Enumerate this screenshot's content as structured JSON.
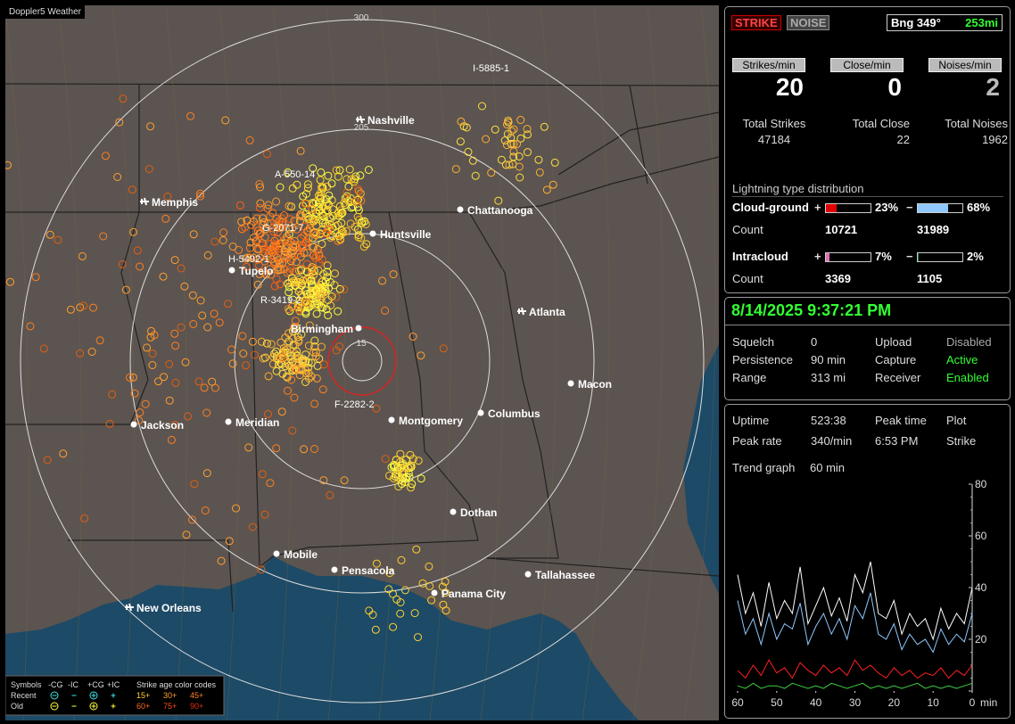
{
  "header": {
    "title": "Doppler5 Weather"
  },
  "map": {
    "range_labels": [
      "300",
      "205",
      "15"
    ],
    "storms": [
      "I-5885-1",
      "A-550-14",
      "G-2071-7",
      "H-5492-1",
      "R-3419-2",
      "F-2282-2"
    ],
    "cities": [
      {
        "name": "Nashville",
        "icon": "plane"
      },
      {
        "name": "Memphis",
        "icon": "plane"
      },
      {
        "name": "Chattanooga",
        "icon": "dot"
      },
      {
        "name": "Huntsville",
        "icon": "dot"
      },
      {
        "name": "Tupelo",
        "icon": "dot"
      },
      {
        "name": "Atlanta",
        "icon": "plane"
      },
      {
        "name": "Birmingham",
        "icon": "dot"
      },
      {
        "name": "Macon",
        "icon": "dot"
      },
      {
        "name": "Jackson",
        "icon": "dot"
      },
      {
        "name": "Meridian",
        "icon": "dot"
      },
      {
        "name": "Montgomery",
        "icon": "dot"
      },
      {
        "name": "Columbus",
        "icon": "dot"
      },
      {
        "name": "Dothan",
        "icon": "dot"
      },
      {
        "name": "Mobile",
        "icon": "dot"
      },
      {
        "name": "Pensacola",
        "icon": "dot"
      },
      {
        "name": "Tallahassee",
        "icon": "dot"
      },
      {
        "name": "Panama City",
        "icon": "dot"
      },
      {
        "name": "New Orleans",
        "icon": "plane"
      }
    ]
  },
  "legend": {
    "symbols_label": "Symbols",
    "symbol_headers": [
      "-CG",
      "-IC",
      "+CG",
      "+IC"
    ],
    "age_label": "Strike age color codes",
    "rows": [
      {
        "name": "Recent",
        "ages": [
          "15+",
          "30+",
          "45+"
        ]
      },
      {
        "name": "Old",
        "ages": [
          "60+",
          "75+",
          "90+"
        ]
      }
    ]
  },
  "status": {
    "strike_button": "STRIKE",
    "noise_button": "NOISE",
    "bearing": "Bng 349°",
    "distance": "253mi"
  },
  "rates": [
    {
      "label": "Strikes/min",
      "value": 20,
      "total_label": "Total Strikes",
      "total": 47184
    },
    {
      "label": "Close/min",
      "value": 0,
      "total_label": "Total Close",
      "total": 22
    },
    {
      "label": "Noises/min",
      "value": 2,
      "total_label": "Total Noises",
      "total": 1962
    }
  ],
  "distribution": {
    "title": "Lightning type distribution",
    "count_label": "Count",
    "types": [
      {
        "name": "Cloud-ground",
        "positive": {
          "sign": "+",
          "percent": {
            "value": 23,
            "label": "23%"
          },
          "count": 10721
        },
        "negative": {
          "sign": "−",
          "percent": {
            "value": 68,
            "label": "68%"
          },
          "count": 31989
        }
      },
      {
        "name": "Intracloud",
        "positive": {
          "sign": "+",
          "percent": {
            "value": 7,
            "label": "7%"
          },
          "count": 3369
        },
        "negative": {
          "sign": "−",
          "percent": {
            "value": 2,
            "label": "2%"
          },
          "count": 1105
        }
      }
    ]
  },
  "clock": "8/14/2025 9:37:21 PM",
  "settings": [
    {
      "label": "Squelch",
      "value": "0"
    },
    {
      "label": "Upload",
      "value": "Disabled"
    },
    {
      "label": "Persistence",
      "value": "90 min"
    },
    {
      "label": "Capture",
      "value": "Active"
    },
    {
      "label": "Range",
      "value": "313 mi"
    },
    {
      "label": "Receiver",
      "value": "Enabled"
    }
  ],
  "stats": [
    {
      "label": "Uptime",
      "value": "523:38"
    },
    {
      "label": "Peak time",
      "value": "6:53 PM"
    },
    {
      "label": "Plot",
      "value": null
    },
    {
      "label": "Peak rate",
      "value": "340/min"
    },
    {
      "label": null,
      "value": "Strike"
    }
  ],
  "trend": {
    "label": "Trend graph",
    "value": "60 min"
  },
  "trend_graph": {
    "type": "line",
    "x_unit": "min",
    "xlim": [
      60,
      0
    ],
    "xticks": [
      60,
      50,
      40,
      30,
      20,
      10,
      0
    ],
    "ylim": [
      0,
      80
    ],
    "yticks": [
      0,
      20,
      40,
      60,
      80
    ],
    "x": [
      60,
      58,
      56,
      54,
      52,
      50,
      48,
      46,
      44,
      42,
      40,
      38,
      36,
      34,
      32,
      30,
      28,
      26,
      24,
      22,
      20,
      18,
      16,
      14,
      12,
      10,
      8,
      6,
      4,
      2,
      0
    ],
    "series": [
      {
        "color": "#ffffff",
        "values": [
          45,
          30,
          38,
          25,
          42,
          28,
          35,
          30,
          48,
          26,
          33,
          40,
          29,
          36,
          27,
          45,
          38,
          50,
          30,
          28,
          35,
          22,
          30,
          25,
          28,
          20,
          32,
          24,
          30,
          26,
          40
        ]
      },
      {
        "color": "#8ec8ff",
        "values": [
          35,
          22,
          28,
          18,
          30,
          20,
          26,
          24,
          34,
          18,
          25,
          30,
          22,
          28,
          20,
          33,
          28,
          38,
          22,
          20,
          26,
          16,
          22,
          18,
          20,
          15,
          24,
          18,
          22,
          19,
          30
        ]
      },
      {
        "color": "#ff2020",
        "values": [
          8,
          5,
          10,
          6,
          12,
          7,
          9,
          5,
          11,
          8,
          6,
          10,
          7,
          9,
          6,
          12,
          8,
          10,
          7,
          5,
          9,
          6,
          8,
          5,
          7,
          6,
          9,
          5,
          8,
          6,
          10
        ]
      },
      {
        "color": "#40d040",
        "values": [
          2,
          1,
          3,
          1,
          2,
          2,
          1,
          3,
          2,
          1,
          2,
          1,
          3,
          2,
          1,
          2,
          3,
          1,
          2,
          1,
          2,
          1,
          2,
          3,
          1,
          2,
          1,
          2,
          1,
          2,
          3
        ]
      }
    ]
  }
}
